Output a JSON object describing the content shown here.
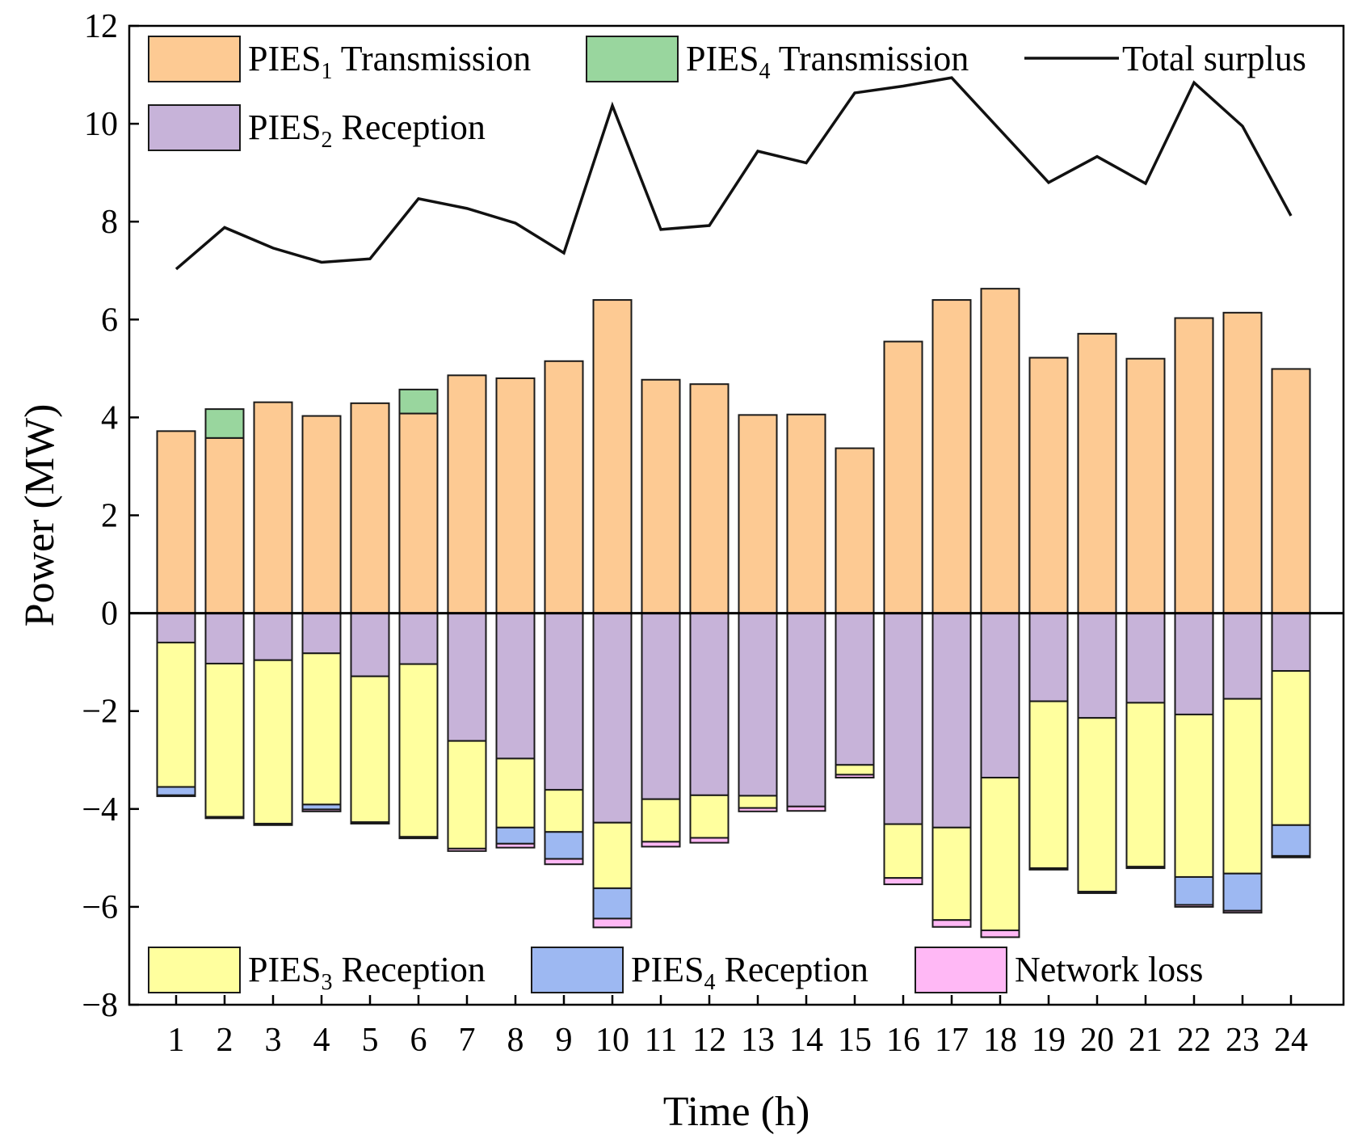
{
  "chart_data": {
    "type": "bar",
    "subtype": "stacked-with-line",
    "xlabel": "Time (h)",
    "ylabel": "Power (MW)",
    "ylim": [
      -8,
      12
    ],
    "yticks": [
      -8,
      -6,
      -4,
      -2,
      0,
      2,
      4,
      6,
      8,
      10,
      12
    ],
    "yticks_labels": [
      "−8",
      "−6",
      "−4",
      "−2",
      "0",
      "2",
      "4",
      "6",
      "8",
      "10",
      "12"
    ],
    "categories": [
      "1",
      "2",
      "3",
      "4",
      "5",
      "6",
      "7",
      "8",
      "9",
      "10",
      "11",
      "12",
      "13",
      "14",
      "15",
      "16",
      "17",
      "18",
      "19",
      "20",
      "21",
      "22",
      "23",
      "24"
    ],
    "series": [
      {
        "name": "PIES1 Transmission",
        "label_main": "PIES",
        "label_sub": "1",
        "label_rest": " Transmission",
        "color": "#FDCA93",
        "stack": "positive",
        "values": [
          3.72,
          3.58,
          4.31,
          4.03,
          4.29,
          4.08,
          4.86,
          4.8,
          5.15,
          6.4,
          4.77,
          4.68,
          4.05,
          4.06,
          3.37,
          5.55,
          6.4,
          6.63,
          5.22,
          5.71,
          5.2,
          6.03,
          6.14,
          4.99
        ]
      },
      {
        "name": "PIES4 Transmission",
        "label_main": "PIES",
        "label_sub": "4",
        "label_rest": " Transmission",
        "color": "#99D69E",
        "stack": "positive",
        "values": [
          0,
          0.59,
          0,
          0,
          0,
          0.49,
          0,
          0,
          0,
          0,
          0,
          0,
          0,
          0,
          0,
          0,
          0,
          0,
          0,
          0,
          0,
          0,
          0,
          0
        ]
      },
      {
        "name": "PIES2 Reception",
        "label_main": "PIES",
        "label_sub": "2",
        "label_rest": " Reception",
        "color": "#C7B3D9",
        "stack": "negative",
        "values": [
          -0.6,
          -1.03,
          -0.96,
          -0.82,
          -1.29,
          -1.04,
          -2.61,
          -2.97,
          -3.61,
          -4.28,
          -3.8,
          -3.72,
          -3.73,
          -3.95,
          -3.1,
          -4.31,
          -4.38,
          -3.36,
          -1.8,
          -2.14,
          -1.83,
          -2.07,
          -1.75,
          -1.18
        ]
      },
      {
        "name": "PIES3 Reception",
        "label_main": "PIES",
        "label_sub": "3",
        "label_rest": " Reception",
        "color": "#FFFF9E",
        "stack": "negative",
        "values": [
          -2.95,
          -3.13,
          -3.34,
          -3.09,
          -2.98,
          -3.53,
          -2.2,
          -1.41,
          -0.86,
          -1.34,
          -0.87,
          -0.87,
          -0.25,
          0,
          -0.2,
          -1.1,
          -1.89,
          -3.12,
          -3.41,
          -3.55,
          -3.35,
          -3.32,
          -3.57,
          -3.15
        ]
      },
      {
        "name": "PIES4 Reception",
        "label_main": "PIES",
        "label_sub": "4",
        "label_rest": " Reception",
        "color": "#9DB8F2",
        "stack": "negative",
        "values": [
          -0.17,
          0,
          0,
          -0.1,
          0,
          0,
          0,
          -0.33,
          -0.55,
          -0.62,
          0,
          0,
          0,
          0,
          0,
          0,
          0,
          0,
          0,
          0,
          0,
          -0.57,
          -0.76,
          -0.63
        ]
      },
      {
        "name": "Network loss",
        "label_main": "Network loss",
        "label_sub": "",
        "label_rest": "",
        "color": "#FFB8F5",
        "stack": "negative",
        "values": [
          -0.02,
          -0.03,
          -0.03,
          -0.04,
          -0.03,
          -0.03,
          -0.05,
          -0.08,
          -0.11,
          -0.18,
          -0.1,
          -0.1,
          -0.07,
          -0.09,
          -0.06,
          -0.13,
          -0.14,
          -0.14,
          -0.03,
          -0.03,
          -0.03,
          -0.04,
          -0.04,
          -0.03
        ]
      }
    ],
    "line": {
      "name": "Total surplus",
      "color": "#111111",
      "values": [
        7.03,
        7.88,
        7.46,
        7.17,
        7.24,
        8.47,
        8.27,
        7.97,
        7.36,
        10.37,
        7.84,
        7.92,
        9.44,
        9.2,
        10.63,
        10.77,
        10.94,
        9.87,
        8.8,
        9.33,
        8.78,
        10.84,
        9.95,
        8.12
      ]
    },
    "legend_top_rows": [
      [
        "0",
        "1",
        "line"
      ],
      [
        "2"
      ]
    ],
    "legend_bottom_row": [
      "3",
      "4",
      "5"
    ]
  }
}
